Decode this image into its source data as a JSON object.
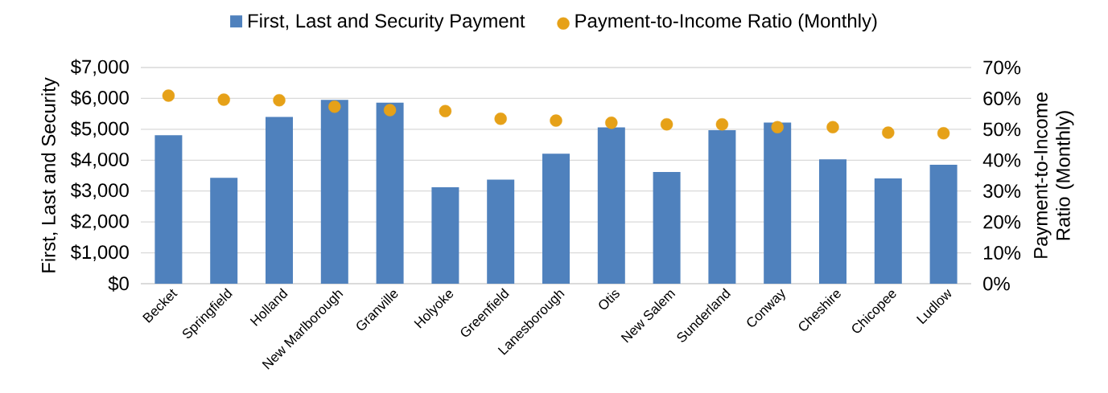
{
  "chart_data": {
    "type": "bar",
    "categories": [
      "Becket",
      "Springfield",
      "Holland",
      "New Marlborough",
      "Granville",
      "Holyoke",
      "Greenfield",
      "Lanesborough",
      "Otis",
      "New Salem",
      "Sunderland",
      "Conway",
      "Cheshire",
      "Chicopee",
      "Ludlow"
    ],
    "series": [
      {
        "name": "First, Last and Security Payment",
        "color": "#4f81bd",
        "values": [
          4810,
          3430,
          5400,
          5950,
          5860,
          3120,
          3370,
          4210,
          5060,
          3620,
          4970,
          5220,
          4030,
          3410,
          3850
        ]
      },
      {
        "name": "Payment-to-Income Ratio (Monthly)",
        "type": "scatter",
        "axis": "y2",
        "color": "#e6a118",
        "marker": "circle",
        "values": [
          60.9,
          59.6,
          59.4,
          57.3,
          56.2,
          55.9,
          53.4,
          52.8,
          52.1,
          51.6,
          51.6,
          50.7,
          50.7,
          48.9,
          48.7
        ]
      }
    ],
    "ylabel": "First, Last and Security",
    "y2label": "Payment-to-Income Ratio (Monthly)",
    "ylim": [
      0,
      7000
    ],
    "yticks": [
      {
        "value": 0,
        "label": "$0"
      },
      {
        "value": 1000,
        "label": "$1,000"
      },
      {
        "value": 2000,
        "label": "$2,000"
      },
      {
        "value": 3000,
        "label": "$3,000"
      },
      {
        "value": 4000,
        "label": "$4,000"
      },
      {
        "value": 5000,
        "label": "$5,000"
      },
      {
        "value": 6000,
        "label": "$6,000"
      },
      {
        "value": 7000,
        "label": "$7,000"
      }
    ],
    "y2lim": [
      0,
      70
    ],
    "y2ticks": [
      {
        "value": 0,
        "label": "0%"
      },
      {
        "value": 10,
        "label": "10%"
      },
      {
        "value": 20,
        "label": "20%"
      },
      {
        "value": 30,
        "label": "30%"
      },
      {
        "value": 40,
        "label": "40%"
      },
      {
        "value": 50,
        "label": "50%"
      },
      {
        "value": 60,
        "label": "60%"
      },
      {
        "value": 70,
        "label": "70%"
      }
    ],
    "grid": "y",
    "legend": "top"
  }
}
